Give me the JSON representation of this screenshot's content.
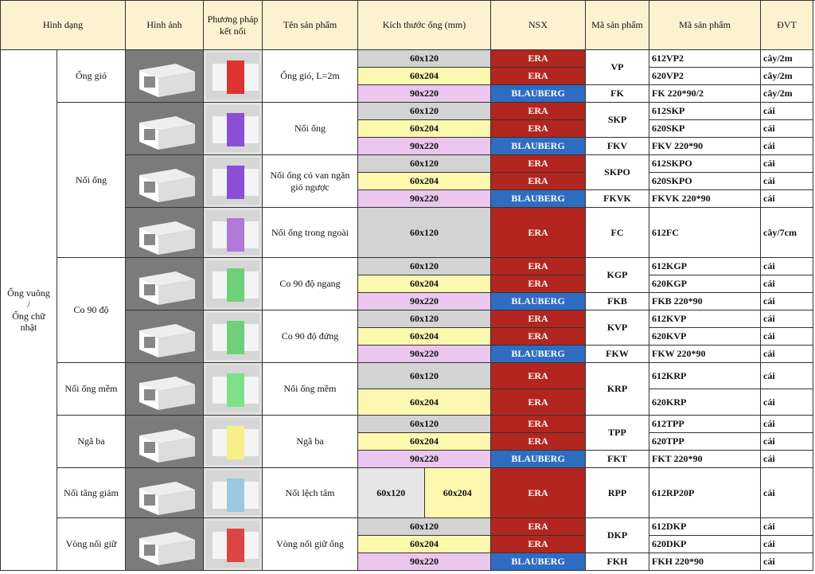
{
  "header": [
    "Hình dạng",
    "Hình ảnh",
    "Phương pháp kết nối",
    "Tên sản phẩm",
    "Kích thước ống (mm)",
    "NSX",
    "Mã sản phẩm",
    "Mã sản phẩm",
    "ĐVT"
  ],
  "category": "Ống vuông\n/\nỐng chữ nhật",
  "colors": {
    "sizes": {
      "60x120": "#d3d3d3",
      "60x204": "#fdf8b0",
      "90x220": "#ebc6ef"
    },
    "makers": {
      "ERA": "#b3251f",
      "BLAUBERG": "#2f6dc2"
    }
  },
  "groups": [
    {
      "name": "Ống gió",
      "products": [
        {
          "name": "Ống gió,  L=2m",
          "variants": [
            {
              "code": "VP",
              "rows": [
                {
                  "size": "60x120",
                  "maker": "ERA",
                  "full": "612VP2",
                  "unit": "cây/2m"
                },
                {
                  "size": "60x204",
                  "maker": "ERA",
                  "full": "620VP2",
                  "unit": "cây/2m"
                }
              ]
            },
            {
              "code": "FK",
              "rows": [
                {
                  "size": "90x220",
                  "maker": "BLAUBERG",
                  "full": "FK 220*90/2",
                  "unit": "cây/2m"
                }
              ]
            }
          ]
        }
      ]
    },
    {
      "name": "Nối ống",
      "products": [
        {
          "name": "Nối ống",
          "variants": [
            {
              "code": "SKP",
              "rows": [
                {
                  "size": "60x120",
                  "maker": "ERA",
                  "full": "612SKP",
                  "unit": "cái"
                },
                {
                  "size": "60x204",
                  "maker": "ERA",
                  "full": "620SKP",
                  "unit": "cái"
                }
              ]
            },
            {
              "code": "FKV",
              "rows": [
                {
                  "size": "90x220",
                  "maker": "BLAUBERG",
                  "full": "FKV 220*90",
                  "unit": "cái"
                }
              ]
            }
          ]
        },
        {
          "name": "Nối ống có van ngăn gió ngược",
          "variants": [
            {
              "code": "SKPO",
              "rows": [
                {
                  "size": "60x120",
                  "maker": "ERA",
                  "full": "612SKPO",
                  "unit": "cái"
                },
                {
                  "size": "60x204",
                  "maker": "ERA",
                  "full": "620SKPO",
                  "unit": "cái"
                }
              ]
            },
            {
              "code": "FKVK",
              "rows": [
                {
                  "size": "90x220",
                  "maker": "BLAUBERG",
                  "full": "FKVK 220*90",
                  "unit": "cái"
                }
              ]
            }
          ]
        },
        {
          "name": "Nối ống trong ngoài",
          "variants": [
            {
              "code": "FC",
              "rows": [
                {
                  "size": "60x120",
                  "maker": "ERA",
                  "full": "612FC",
                  "unit": "cây/7cm"
                }
              ]
            }
          ]
        }
      ]
    },
    {
      "name": "Co 90 độ",
      "products": [
        {
          "name": "Co 90 độ ngang",
          "variants": [
            {
              "code": "KGP",
              "rows": [
                {
                  "size": "60x120",
                  "maker": "ERA",
                  "full": "612KGP",
                  "unit": "cái"
                },
                {
                  "size": "60x204",
                  "maker": "ERA",
                  "full": "620KGP",
                  "unit": "cái"
                }
              ]
            },
            {
              "code": "FKB",
              "rows": [
                {
                  "size": "90x220",
                  "maker": "BLAUBERG",
                  "full": "FKB 220*90",
                  "unit": "cái"
                }
              ]
            }
          ]
        },
        {
          "name": "Co 90 độ đứng",
          "variants": [
            {
              "code": "KVP",
              "rows": [
                {
                  "size": "60x120",
                  "maker": "ERA",
                  "full": "612KVP",
                  "unit": "cái"
                },
                {
                  "size": "60x204",
                  "maker": "ERA",
                  "full": "620KVP",
                  "unit": "cái"
                }
              ]
            },
            {
              "code": "FKW",
              "rows": [
                {
                  "size": "90x220",
                  "maker": "BLAUBERG",
                  "full": "FKW 220*90",
                  "unit": "cái"
                }
              ]
            }
          ]
        }
      ]
    },
    {
      "name": "Nối ống mềm",
      "products": [
        {
          "name": "Nối ống mềm",
          "variants": [
            {
              "code": "KRP",
              "rows": [
                {
                  "size": "60x120",
                  "maker": "ERA",
                  "full": "612KRP",
                  "unit": "cái"
                },
                {
                  "size": "60x204",
                  "maker": "ERA",
                  "full": "620KRP",
                  "unit": "cái"
                }
              ]
            }
          ]
        }
      ]
    },
    {
      "name": "Ngã ba",
      "products": [
        {
          "name": "Ngã ba",
          "variants": [
            {
              "code": "TPP",
              "rows": [
                {
                  "size": "60x120",
                  "maker": "ERA",
                  "full": "612TPP",
                  "unit": "cái"
                },
                {
                  "size": "60x204",
                  "maker": "ERA",
                  "full": "620TPP",
                  "unit": "cái"
                }
              ]
            },
            {
              "code": "FKT",
              "rows": [
                {
                  "size": "90x220",
                  "maker": "BLAUBERG",
                  "full": "FKT 220*90",
                  "unit": "cái"
                }
              ]
            }
          ]
        }
      ]
    },
    {
      "name": "Nối tăng giảm",
      "products": [
        {
          "name": "Nối lệch tâm",
          "variants": [
            {
              "code": "RPP",
              "rows": [
                {
                  "size": [
                    "60x120",
                    "60x204"
                  ],
                  "maker": "ERA",
                  "full": "612RP20P",
                  "unit": "cái"
                }
              ]
            }
          ]
        }
      ]
    },
    {
      "name": "Vòng nối giữ",
      "products": [
        {
          "name": "Vòng nối giữ ống",
          "variants": [
            {
              "code": "DKP",
              "rows": [
                {
                  "size": "60x120",
                  "maker": "ERA",
                  "full": "612DKP",
                  "unit": "cái"
                },
                {
                  "size": "60x204",
                  "maker": "ERA",
                  "full": "620DKP",
                  "unit": "cái"
                }
              ]
            },
            {
              "code": "FKH",
              "rows": [
                {
                  "size": "90x220",
                  "maker": "BLAUBERG",
                  "full": "FKH 220*90",
                  "unit": "cái"
                }
              ]
            }
          ]
        }
      ]
    }
  ]
}
